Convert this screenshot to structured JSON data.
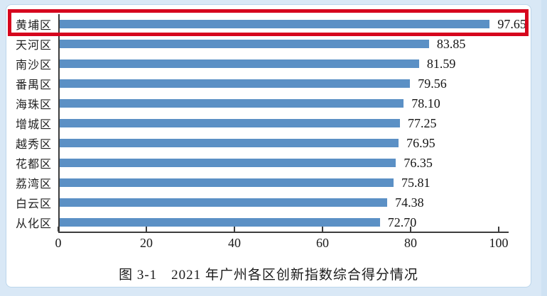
{
  "page": {
    "background_color": "#d9e8f6",
    "panel_background": "#ffffff",
    "panel_border_color": "#bcd6ec",
    "axis_color": "#3c3c3c",
    "text_color": "#1a1a1a"
  },
  "chart_data": {
    "type": "bar",
    "orientation": "horizontal",
    "title": "图 3-1　2021 年广州各区创新指数综合得分情况",
    "categories": [
      "黄埔区",
      "天河区",
      "南沙区",
      "番禺区",
      "海珠区",
      "增城区",
      "越秀区",
      "花都区",
      "荔湾区",
      "白云区",
      "从化区"
    ],
    "values": [
      97.65,
      83.85,
      81.59,
      79.56,
      78.1,
      77.25,
      76.95,
      76.35,
      75.81,
      74.38,
      72.7
    ],
    "value_labels": [
      "97.65",
      "83.85",
      "81.59",
      "79.56",
      "78.10",
      "77.25",
      "76.95",
      "76.35",
      "75.81",
      "74.38",
      "72.70"
    ],
    "x_ticks": [
      0,
      20,
      40,
      60,
      80,
      100
    ],
    "xlim": [
      0,
      100
    ],
    "xlabel": "",
    "ylabel": "",
    "grid": false,
    "legend": false,
    "bar_color": "#5b90c5",
    "highlight": {
      "category": "黄埔区",
      "box_color": "#d6051e"
    }
  }
}
